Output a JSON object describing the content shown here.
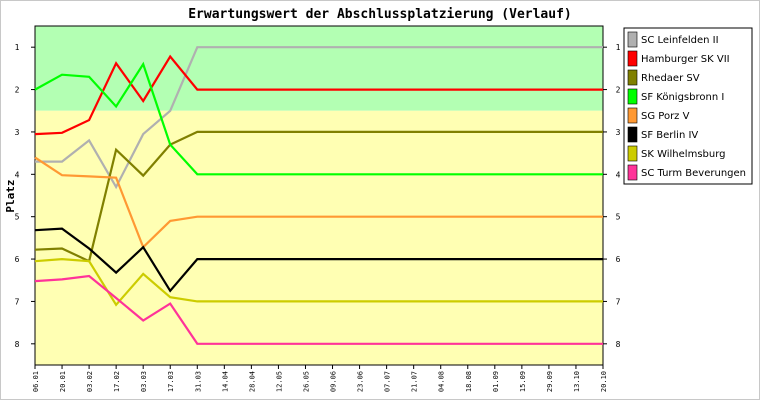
{
  "chart_data": {
    "type": "line",
    "title": "Erwartungswert der Abschlussplatzierung (Verlauf)",
    "xlabel": "",
    "ylabel": "Platz",
    "y_inverted": true,
    "ylim": [
      0.5,
      8.5
    ],
    "y_ticks": [
      "1",
      "2",
      "3",
      "4",
      "5",
      "6",
      "7",
      "8"
    ],
    "grid": false,
    "legend_position": "right",
    "bands": [
      {
        "from": 0.5,
        "to": 2.5,
        "color": "#b3ffb3"
      },
      {
        "from": 2.5,
        "to": 8.5,
        "color": "#ffffb3"
      }
    ],
    "x": [
      "06.01",
      "20.01",
      "03.02",
      "17.02",
      "03.03",
      "17.03",
      "31.03",
      "14.04",
      "28.04",
      "12.05",
      "26.05",
      "09.06",
      "23.06",
      "07.07",
      "21.07",
      "04.08",
      "18.08",
      "01.09",
      "15.09",
      "29.09",
      "13.10",
      "20.10"
    ],
    "series": [
      {
        "name": "SC Leinfelden II",
        "color": "#b0b0b0",
        "values": [
          3.7,
          3.7,
          3.2,
          4.3,
          3.05,
          2.5,
          1,
          1,
          1,
          1,
          1,
          1,
          1,
          1,
          1,
          1,
          1,
          1,
          1,
          1,
          1,
          1
        ]
      },
      {
        "name": "Hamburger SK VII",
        "color": "#ff0000",
        "values": [
          3.05,
          3.02,
          2.72,
          1.38,
          2.27,
          1.22,
          2,
          2,
          2,
          2,
          2,
          2,
          2,
          2,
          2,
          2,
          2,
          2,
          2,
          2,
          2,
          2
        ]
      },
      {
        "name": "Rhedaer SV",
        "color": "#808000",
        "values": [
          5.78,
          5.75,
          6.05,
          3.42,
          4.03,
          3.3,
          3,
          3,
          3,
          3,
          3,
          3,
          3,
          3,
          3,
          3,
          3,
          3,
          3,
          3,
          3,
          3
        ]
      },
      {
        "name": "SF Königsbronn I",
        "color": "#00ff00",
        "values": [
          2.0,
          1.65,
          1.7,
          2.4,
          1.4,
          3.3,
          4,
          4,
          4,
          4,
          4,
          4,
          4,
          4,
          4,
          4,
          4,
          4,
          4,
          4,
          4,
          4
        ]
      },
      {
        "name": "SG Porz V",
        "color": "#ff9933",
        "values": [
          3.6,
          4.02,
          4.05,
          4.08,
          5.72,
          5.1,
          5,
          5,
          5,
          5,
          5,
          5,
          5,
          5,
          5,
          5,
          5,
          5,
          5,
          5,
          5,
          5
        ]
      },
      {
        "name": "SF Berlin IV",
        "color": "#000000",
        "values": [
          5.32,
          5.28,
          5.75,
          6.32,
          5.72,
          6.75,
          6,
          6,
          6,
          6,
          6,
          6,
          6,
          6,
          6,
          6,
          6,
          6,
          6,
          6,
          6,
          6
        ]
      },
      {
        "name": "SK Wilhelmsburg",
        "color": "#cccc00",
        "values": [
          6.05,
          6.0,
          6.05,
          7.08,
          6.35,
          6.9,
          7,
          7,
          7,
          7,
          7,
          7,
          7,
          7,
          7,
          7,
          7,
          7,
          7,
          7,
          7,
          7
        ]
      },
      {
        "name": "SC Turm Beverungen",
        "color": "#ff3399",
        "values": [
          6.52,
          6.48,
          6.4,
          6.92,
          7.45,
          7.05,
          8,
          8,
          8,
          8,
          8,
          8,
          8,
          8,
          8,
          8,
          8,
          8,
          8,
          8,
          8,
          8
        ]
      }
    ]
  }
}
